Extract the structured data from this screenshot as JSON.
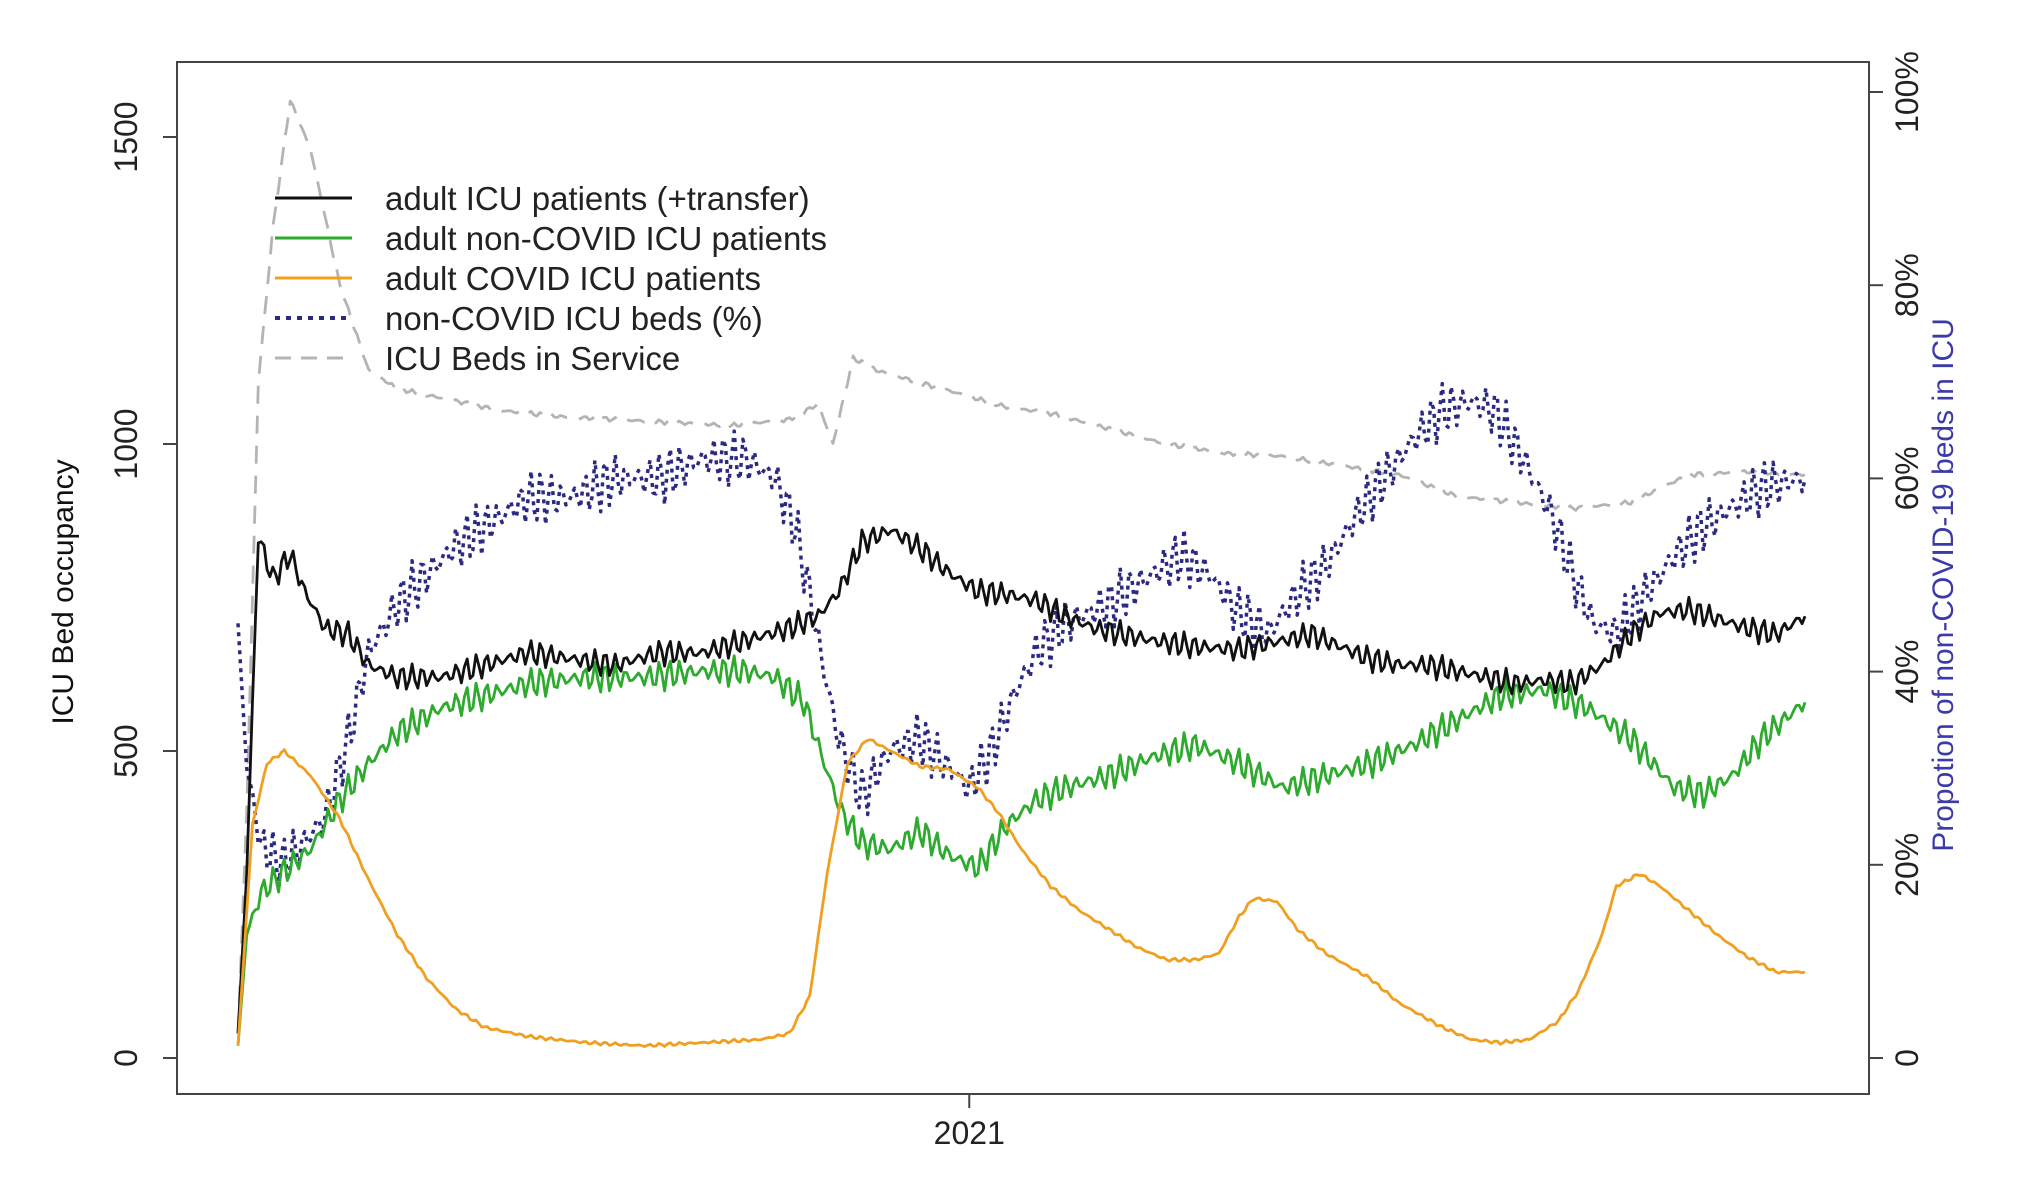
{
  "chart_data": {
    "type": "line",
    "title": "",
    "xlabel": "",
    "x_tick_labels": [
      "2021"
    ],
    "ylabel_left": "ICU Bed occupancy",
    "ylabel_right": "Propotion of non-COVID-19 beds in ICU",
    "ylim_left": [
      0,
      1600
    ],
    "ylim_right": [
      0,
      1
    ],
    "y_ticks_left": [
      "0",
      "500",
      "1000",
      "1500"
    ],
    "y_ticks_right": [
      "0",
      "20%",
      "40%",
      "60%",
      "80%",
      "100%"
    ],
    "x_domain_days": [
      0,
      540
    ],
    "x_tick_day": 252,
    "legend_position": "top-left",
    "grid": false,
    "colors": {
      "adult_icu": "#111111",
      "non_covid": "#2eaa2e",
      "covid": "#f0a020",
      "non_covid_pct": "#2a2a80",
      "beds": "#b4b4b4"
    },
    "series": [
      {
        "name": "adult ICU patients (+transfer)",
        "axis": "left",
        "style": "solid",
        "color": "#111111",
        "points": [
          [
            0,
            40
          ],
          [
            3,
            300
          ],
          [
            7,
            850
          ],
          [
            12,
            780
          ],
          [
            18,
            820
          ],
          [
            23,
            760
          ],
          [
            30,
            700
          ],
          [
            38,
            690
          ],
          [
            45,
            640
          ],
          [
            55,
            620
          ],
          [
            70,
            620
          ],
          [
            85,
            640
          ],
          [
            100,
            660
          ],
          [
            115,
            650
          ],
          [
            130,
            640
          ],
          [
            145,
            660
          ],
          [
            160,
            660
          ],
          [
            175,
            680
          ],
          [
            190,
            700
          ],
          [
            200,
            720
          ],
          [
            207,
            760
          ],
          [
            215,
            840
          ],
          [
            225,
            860
          ],
          [
            235,
            830
          ],
          [
            245,
            790
          ],
          [
            255,
            760
          ],
          [
            265,
            755
          ],
          [
            275,
            745
          ],
          [
            285,
            720
          ],
          [
            295,
            700
          ],
          [
            305,
            690
          ],
          [
            315,
            680
          ],
          [
            330,
            670
          ],
          [
            345,
            665
          ],
          [
            360,
            680
          ],
          [
            370,
            690
          ],
          [
            380,
            670
          ],
          [
            390,
            650
          ],
          [
            400,
            640
          ],
          [
            410,
            640
          ],
          [
            420,
            630
          ],
          [
            430,
            620
          ],
          [
            440,
            610
          ],
          [
            450,
            615
          ],
          [
            460,
            610
          ],
          [
            470,
            640
          ],
          [
            480,
            690
          ],
          [
            490,
            725
          ],
          [
            500,
            730
          ],
          [
            510,
            715
          ],
          [
            520,
            700
          ],
          [
            530,
            690
          ],
          [
            540,
            720
          ]
        ]
      },
      {
        "name": "adult non-COVID ICU patients",
        "axis": "left",
        "style": "solid",
        "color": "#2eaa2e",
        "points": [
          [
            0,
            20
          ],
          [
            3,
            200
          ],
          [
            8,
            270
          ],
          [
            15,
            300
          ],
          [
            25,
            340
          ],
          [
            35,
            420
          ],
          [
            45,
            480
          ],
          [
            55,
            530
          ],
          [
            70,
            570
          ],
          [
            85,
            590
          ],
          [
            100,
            610
          ],
          [
            120,
            620
          ],
          [
            140,
            620
          ],
          [
            160,
            630
          ],
          [
            175,
            630
          ],
          [
            185,
            620
          ],
          [
            195,
            580
          ],
          [
            202,
            480
          ],
          [
            208,
            400
          ],
          [
            215,
            350
          ],
          [
            225,
            340
          ],
          [
            235,
            370
          ],
          [
            245,
            330
          ],
          [
            255,
            310
          ],
          [
            265,
            380
          ],
          [
            275,
            420
          ],
          [
            285,
            440
          ],
          [
            300,
            460
          ],
          [
            315,
            490
          ],
          [
            330,
            510
          ],
          [
            345,
            480
          ],
          [
            360,
            440
          ],
          [
            375,
            460
          ],
          [
            390,
            480
          ],
          [
            405,
            510
          ],
          [
            420,
            550
          ],
          [
            435,
            590
          ],
          [
            450,
            600
          ],
          [
            465,
            570
          ],
          [
            480,
            520
          ],
          [
            495,
            440
          ],
          [
            505,
            430
          ],
          [
            515,
            460
          ],
          [
            525,
            520
          ],
          [
            540,
            580
          ]
        ]
      },
      {
        "name": "adult COVID ICU patients",
        "axis": "left",
        "style": "solid",
        "color": "#f0a020",
        "points": [
          [
            0,
            20
          ],
          [
            5,
            380
          ],
          [
            10,
            480
          ],
          [
            16,
            500
          ],
          [
            25,
            460
          ],
          [
            35,
            390
          ],
          [
            45,
            290
          ],
          [
            55,
            200
          ],
          [
            65,
            130
          ],
          [
            75,
            80
          ],
          [
            85,
            50
          ],
          [
            100,
            35
          ],
          [
            120,
            25
          ],
          [
            140,
            20
          ],
          [
            160,
            25
          ],
          [
            180,
            30
          ],
          [
            190,
            40
          ],
          [
            197,
            100
          ],
          [
            203,
            300
          ],
          [
            210,
            480
          ],
          [
            217,
            520
          ],
          [
            225,
            500
          ],
          [
            235,
            475
          ],
          [
            245,
            470
          ],
          [
            255,
            440
          ],
          [
            262,
            400
          ],
          [
            270,
            340
          ],
          [
            280,
            280
          ],
          [
            290,
            240
          ],
          [
            300,
            210
          ],
          [
            310,
            180
          ],
          [
            320,
            160
          ],
          [
            330,
            160
          ],
          [
            338,
            170
          ],
          [
            345,
            230
          ],
          [
            350,
            260
          ],
          [
            358,
            255
          ],
          [
            365,
            210
          ],
          [
            375,
            170
          ],
          [
            390,
            130
          ],
          [
            400,
            90
          ],
          [
            415,
            50
          ],
          [
            425,
            30
          ],
          [
            435,
            25
          ],
          [
            445,
            30
          ],
          [
            455,
            60
          ],
          [
            462,
            110
          ],
          [
            470,
            200
          ],
          [
            475,
            280
          ],
          [
            483,
            300
          ],
          [
            490,
            280
          ],
          [
            500,
            240
          ],
          [
            510,
            200
          ],
          [
            520,
            165
          ],
          [
            530,
            140
          ],
          [
            540,
            140
          ]
        ]
      },
      {
        "name": "non-COVID ICU beds (%)",
        "axis": "right",
        "style": "dotted",
        "color": "#2a2a80",
        "points": [
          [
            0,
            0.45
          ],
          [
            3,
            0.3
          ],
          [
            8,
            0.22
          ],
          [
            15,
            0.2
          ],
          [
            22,
            0.22
          ],
          [
            30,
            0.25
          ],
          [
            38,
            0.33
          ],
          [
            45,
            0.42
          ],
          [
            55,
            0.47
          ],
          [
            65,
            0.5
          ],
          [
            75,
            0.53
          ],
          [
            85,
            0.55
          ],
          [
            100,
            0.58
          ],
          [
            115,
            0.58
          ],
          [
            130,
            0.6
          ],
          [
            145,
            0.6
          ],
          [
            160,
            0.62
          ],
          [
            175,
            0.62
          ],
          [
            185,
            0.6
          ],
          [
            192,
            0.55
          ],
          [
            197,
            0.48
          ],
          [
            202,
            0.4
          ],
          [
            207,
            0.33
          ],
          [
            215,
            0.27
          ],
          [
            225,
            0.32
          ],
          [
            235,
            0.33
          ],
          [
            245,
            0.3
          ],
          [
            252,
            0.28
          ],
          [
            260,
            0.32
          ],
          [
            268,
            0.38
          ],
          [
            275,
            0.42
          ],
          [
            285,
            0.45
          ],
          [
            300,
            0.47
          ],
          [
            315,
            0.5
          ],
          [
            325,
            0.52
          ],
          [
            335,
            0.5
          ],
          [
            345,
            0.46
          ],
          [
            355,
            0.44
          ],
          [
            365,
            0.48
          ],
          [
            375,
            0.51
          ],
          [
            385,
            0.56
          ],
          [
            395,
            0.6
          ],
          [
            405,
            0.64
          ],
          [
            415,
            0.67
          ],
          [
            425,
            0.68
          ],
          [
            433,
            0.67
          ],
          [
            443,
            0.62
          ],
          [
            453,
            0.56
          ],
          [
            460,
            0.5
          ],
          [
            467,
            0.45
          ],
          [
            475,
            0.44
          ],
          [
            485,
            0.48
          ],
          [
            495,
            0.52
          ],
          [
            505,
            0.55
          ],
          [
            515,
            0.57
          ],
          [
            525,
            0.59
          ],
          [
            540,
            0.6
          ]
        ]
      },
      {
        "name": "ICU Beds in Service",
        "axis": "left",
        "style": "dashed",
        "color": "#b4b4b4",
        "points": [
          [
            0,
            40
          ],
          [
            3,
            400
          ],
          [
            7,
            1100
          ],
          [
            12,
            1350
          ],
          [
            18,
            1560
          ],
          [
            25,
            1480
          ],
          [
            35,
            1260
          ],
          [
            45,
            1120
          ],
          [
            55,
            1090
          ],
          [
            70,
            1075
          ],
          [
            90,
            1055
          ],
          [
            110,
            1045
          ],
          [
            130,
            1040
          ],
          [
            150,
            1035
          ],
          [
            170,
            1030
          ],
          [
            190,
            1040
          ],
          [
            200,
            1065
          ],
          [
            205,
            1000
          ],
          [
            212,
            1140
          ],
          [
            220,
            1120
          ],
          [
            235,
            1100
          ],
          [
            250,
            1080
          ],
          [
            265,
            1060
          ],
          [
            280,
            1050
          ],
          [
            300,
            1025
          ],
          [
            320,
            1000
          ],
          [
            340,
            985
          ],
          [
            360,
            980
          ],
          [
            380,
            965
          ],
          [
            400,
            950
          ],
          [
            420,
            915
          ],
          [
            440,
            905
          ],
          [
            460,
            895
          ],
          [
            480,
            905
          ],
          [
            500,
            950
          ],
          [
            520,
            955
          ],
          [
            540,
            950
          ]
        ]
      }
    ]
  }
}
